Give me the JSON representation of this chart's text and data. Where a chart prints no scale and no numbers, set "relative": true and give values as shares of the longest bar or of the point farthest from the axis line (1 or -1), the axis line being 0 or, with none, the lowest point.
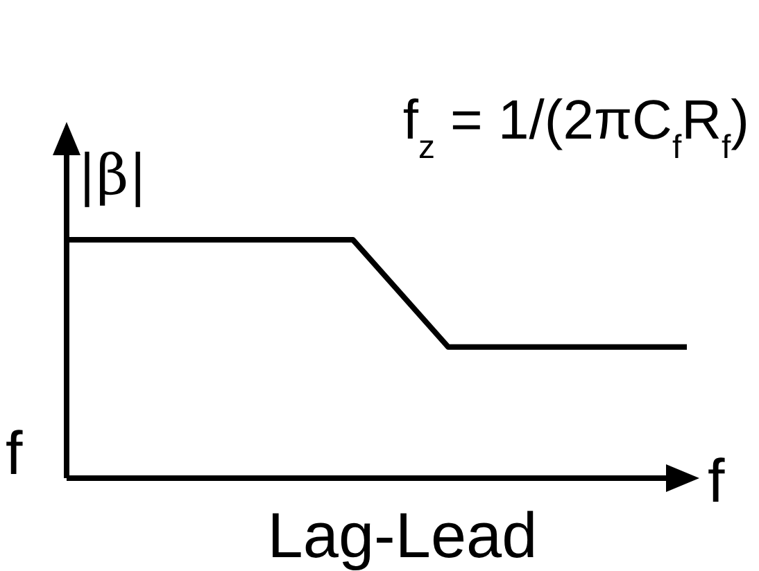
{
  "chart_data": {
    "type": "line",
    "relative": true,
    "title": "Lag-Lead",
    "xlabel": "f",
    "ylabel": "|β|",
    "annotations": [
      "f",
      "f$_{z}$ = 1/(2πC$_{f}$R$_{f}$)"
    ],
    "categories": [
      null,
      null,
      null,
      null,
      null,
      null,
      null,
      null,
      null,
      null,
      null,
      null,
      null,
      null
    ],
    "series": [
      {
        "color": "#000000",
        "values": [
          1,
          1,
          1,
          1,
          1,
          1,
          1,
          0.775,
          0.55,
          0.55,
          0.55,
          0.55,
          0.55,
          0.55
        ]
      }
    ],
    "marker": "none",
    "line_style": "solid"
  }
}
